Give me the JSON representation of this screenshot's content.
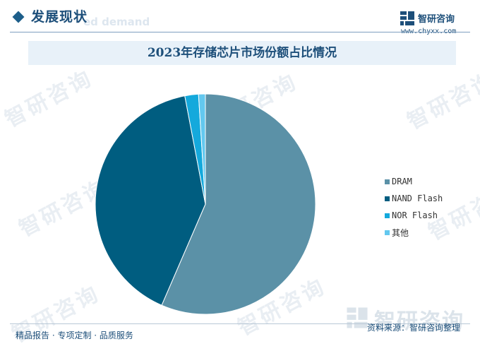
{
  "header": {
    "section_title": "发展现状",
    "section_title_en": "ed demand",
    "brand_name": "智研咨询",
    "brand_url": "www.chyxx.com"
  },
  "watermark_text": "智研咨询",
  "chart_data": {
    "type": "pie",
    "title": "2023年存储芯片市场份额占比情况",
    "categories": [
      "DRAM",
      "NAND Flash",
      "NOR Flash",
      "其他"
    ],
    "values": [
      56.5,
      40.5,
      2.0,
      1.0
    ],
    "colors": [
      "#5b91a7",
      "#005d80",
      "#14a9dc",
      "#63c8ef"
    ],
    "legend_position": "right"
  },
  "footer": {
    "left_text": "精品报告 · 专项定制 · 品质服务",
    "mark_name": "智研咨询",
    "source_text": "资料来源：智研咨询整理"
  }
}
